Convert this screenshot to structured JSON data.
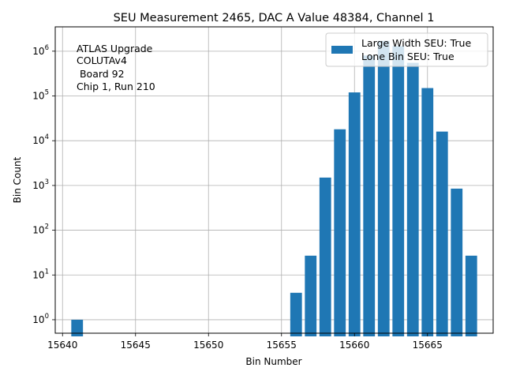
{
  "chart_data": {
    "type": "bar",
    "title": "SEU Measurement 2465, DAC A Value 48384, Channel 1",
    "xlabel": "Bin Number",
    "ylabel": "Bin Count",
    "yscale": "log",
    "xlim": [
      15639.5,
      15669.5
    ],
    "ylim": [
      0.5,
      3500000
    ],
    "grid": true,
    "bar_color": "#1f77b4",
    "x_ticks": [
      15640,
      15645,
      15650,
      15655,
      15660,
      15665
    ],
    "x_tick_labels": [
      "15640",
      "15645",
      "15650",
      "15655",
      "15660",
      "15665"
    ],
    "y_ticks": [
      1,
      10,
      100,
      1000,
      10000,
      100000,
      1000000
    ],
    "y_tick_labels": [
      {
        "base": "10",
        "exp": "0"
      },
      {
        "base": "10",
        "exp": "1"
      },
      {
        "base": "10",
        "exp": "2"
      },
      {
        "base": "10",
        "exp": "3"
      },
      {
        "base": "10",
        "exp": "4"
      },
      {
        "base": "10",
        "exp": "5"
      },
      {
        "base": "10",
        "exp": "6"
      }
    ],
    "x": [
      15641,
      15656,
      15657,
      15658,
      15659,
      15660,
      15661,
      15662,
      15663,
      15664,
      15665,
      15666,
      15667,
      15668
    ],
    "values": [
      1,
      4,
      27,
      1500,
      18000,
      120000,
      800000,
      1700000,
      1300000,
      550000,
      150000,
      16000,
      850,
      27
    ],
    "legend": {
      "placement": "top-right",
      "entries": [
        "Large Width SEU: True",
        "Lone Bin SEU: True"
      ]
    },
    "annotation_lines": [
      "ATLAS Upgrade",
      "COLUTAv4",
      " Board 92",
      "Chip 1, Run 210"
    ]
  }
}
